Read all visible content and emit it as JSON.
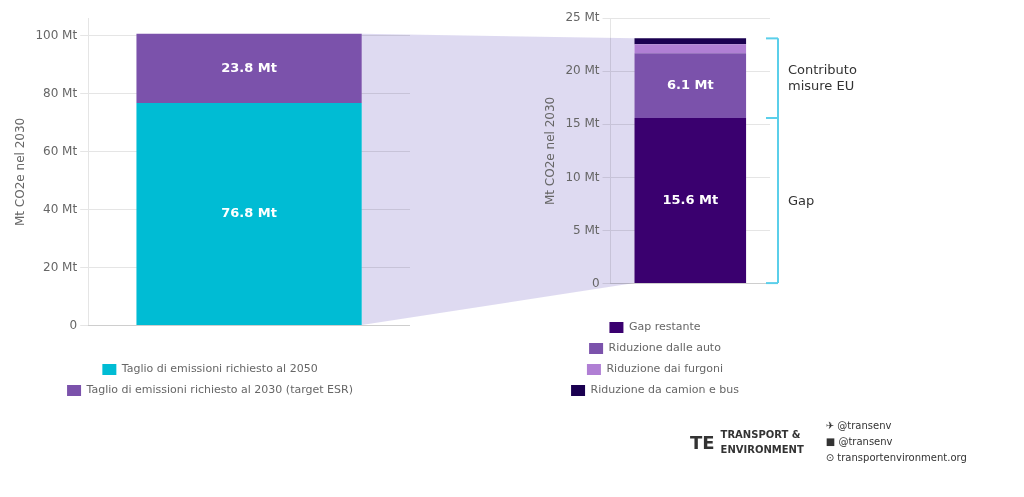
{
  "chart_data": [
    {
      "type": "bar",
      "stacked": true,
      "categories": [
        null
      ],
      "ylabel": "Mt CO2e nel 2030",
      "series": [
        {
          "name": "Taglio di emissioni richiesto al 2050",
          "color": "#00bcd4",
          "values": [
            76.8
          ],
          "data_labels": true,
          "value_labels": [
            "76.8 Mt"
          ]
        },
        {
          "name": "Taglio di emissioni richiesto al 2030 (target ESR)",
          "color": "#7b52ab",
          "values": [
            23.8
          ],
          "data_labels": true,
          "value_labels": [
            "23.8 Mt"
          ]
        }
      ],
      "ylim": [
        0,
        106
      ],
      "yticks": [
        0,
        {
          "value": 20,
          "label": "20 Mt"
        },
        {
          "value": 40,
          "label": "40 Mt"
        },
        {
          "value": 60,
          "label": "60 Mt"
        },
        {
          "value": 80,
          "label": "80 Mt"
        },
        {
          "value": 100,
          "label": "100 Mt"
        }
      ],
      "grid": true,
      "legend": "bottom"
    },
    {
      "type": "bar",
      "stacked": true,
      "categories": [
        null
      ],
      "ylabel": "Mt CO2e nel 2030",
      "series": [
        {
          "name": "Gap restante",
          "color": "#3a006f",
          "values": [
            15.6
          ],
          "data_labels": true,
          "value_labels": [
            "15.6 Mt"
          ]
        },
        {
          "name": "Riduzione dalle auto",
          "color": "#7b52ab",
          "values": [
            6.1
          ],
          "data_labels": true,
          "value_labels": [
            "6.1 Mt"
          ]
        },
        {
          "name": "Riduzione dai furgoni",
          "color": "#b07fd4",
          "values": [
            0.85
          ]
        },
        {
          "name": "Riduzione da camion e bus",
          "color": "#1a0050",
          "values": [
            0.55
          ]
        }
      ],
      "ylim": [
        0,
        25
      ],
      "yticks": [
        0,
        {
          "value": 5,
          "label": "5 Mt"
        },
        {
          "value": 10,
          "label": "10 Mt"
        },
        {
          "value": 15,
          "label": "15 Mt"
        },
        {
          "value": 20,
          "label": "20 Mt"
        },
        {
          "value": 25,
          "label": "25 Mt"
        }
      ],
      "grid": true,
      "legend": "bottom",
      "annotations": [
        "Contributo\nmisure EU",
        "Gap",
        "TE",
        "TRANSPORT &",
        "ENVIRONMENT",
        "✈ @transenv",
        "■ @transenv",
        "⊙ transportenvironment.org"
      ]
    }
  ]
}
